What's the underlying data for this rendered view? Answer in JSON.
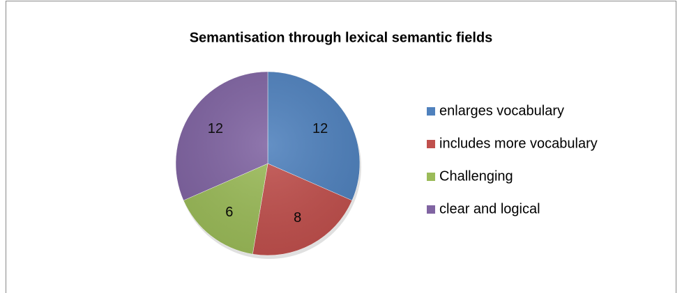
{
  "chart_data": {
    "type": "pie",
    "title": "Semantisation through lexical semantic fields",
    "categories": [
      "enlarges vocabulary",
      "includes more vocabulary",
      "Challenging",
      "clear and logical"
    ],
    "values": [
      12,
      8,
      6,
      12
    ],
    "colors": [
      "#4f81bd",
      "#c0504d",
      "#9bbb59",
      "#8064a2"
    ],
    "legend": "right"
  }
}
